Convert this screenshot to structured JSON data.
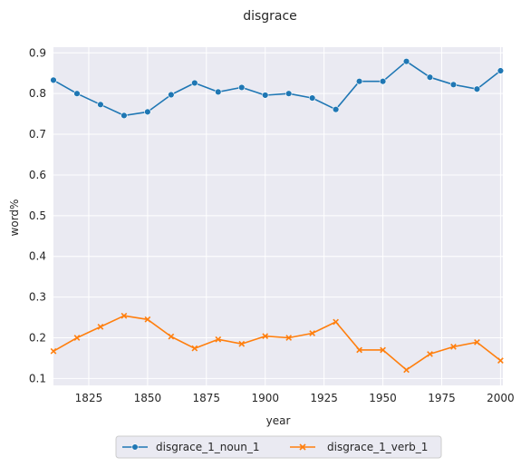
{
  "chart_data": {
    "type": "line",
    "title": "disgrace",
    "xlabel": "year",
    "ylabel": "word%",
    "xlim": [
      1810,
      2001
    ],
    "ylim": [
      0.083,
      0.914
    ],
    "x_ticks": [
      1825,
      1850,
      1875,
      1900,
      1925,
      1950,
      1975,
      2000
    ],
    "y_ticks": [
      0.1,
      0.2,
      0.3,
      0.4,
      0.5,
      0.6,
      0.7,
      0.8,
      0.9
    ],
    "grid": true,
    "legend_position": "below",
    "x": [
      1810,
      1820,
      1830,
      1840,
      1850,
      1860,
      1870,
      1880,
      1890,
      1900,
      1910,
      1920,
      1930,
      1940,
      1950,
      1960,
      1970,
      1980,
      1990,
      2000
    ],
    "series": [
      {
        "name": "disgrace_1_noun_1",
        "color": "#1f77b4",
        "marker": "circle",
        "values": [
          0.833,
          0.8,
          0.773,
          0.746,
          0.755,
          0.797,
          0.826,
          0.804,
          0.815,
          0.796,
          0.8,
          0.789,
          0.761,
          0.83,
          0.83,
          0.879,
          0.84,
          0.822,
          0.811,
          0.856
        ]
      },
      {
        "name": "disgrace_1_verb_1",
        "color": "#ff7f0e",
        "marker": "x",
        "values": [
          0.167,
          0.2,
          0.227,
          0.254,
          0.245,
          0.203,
          0.174,
          0.196,
          0.185,
          0.204,
          0.2,
          0.211,
          0.239,
          0.17,
          0.17,
          0.121,
          0.16,
          0.178,
          0.189,
          0.144
        ]
      }
    ]
  }
}
